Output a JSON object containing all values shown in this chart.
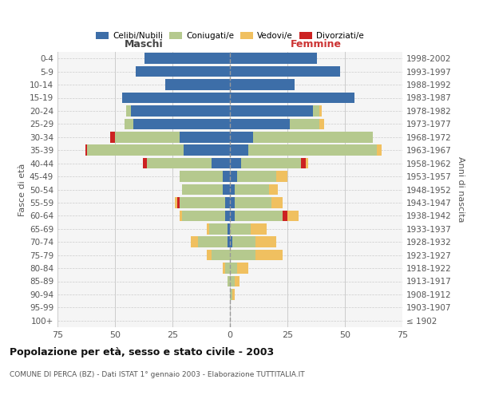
{
  "age_groups": [
    "100+",
    "95-99",
    "90-94",
    "85-89",
    "80-84",
    "75-79",
    "70-74",
    "65-69",
    "60-64",
    "55-59",
    "50-54",
    "45-49",
    "40-44",
    "35-39",
    "30-34",
    "25-29",
    "20-24",
    "15-19",
    "10-14",
    "5-9",
    "0-4"
  ],
  "birth_years": [
    "≤ 1902",
    "1903-1907",
    "1908-1912",
    "1913-1917",
    "1918-1922",
    "1923-1927",
    "1928-1932",
    "1933-1937",
    "1938-1942",
    "1943-1947",
    "1948-1952",
    "1953-1957",
    "1958-1962",
    "1963-1967",
    "1968-1972",
    "1973-1977",
    "1978-1982",
    "1983-1987",
    "1988-1992",
    "1993-1997",
    "1998-2002"
  ],
  "maschi": {
    "celibi": [
      0,
      0,
      0,
      0,
      0,
      0,
      1,
      1,
      2,
      2,
      3,
      3,
      8,
      20,
      22,
      42,
      43,
      47,
      28,
      41,
      37
    ],
    "coniugati": [
      0,
      0,
      0,
      1,
      2,
      8,
      13,
      8,
      19,
      20,
      18,
      19,
      28,
      42,
      28,
      4,
      2,
      0,
      0,
      0,
      0
    ],
    "vedovi": [
      0,
      0,
      0,
      0,
      1,
      2,
      3,
      1,
      1,
      1,
      0,
      0,
      0,
      0,
      0,
      0,
      0,
      0,
      0,
      0,
      0
    ],
    "divorziati": [
      0,
      0,
      0,
      0,
      0,
      0,
      0,
      0,
      0,
      1,
      0,
      0,
      2,
      1,
      2,
      0,
      0,
      0,
      0,
      0,
      0
    ]
  },
  "femmine": {
    "nubili": [
      0,
      0,
      0,
      0,
      0,
      0,
      1,
      0,
      2,
      2,
      2,
      3,
      5,
      8,
      10,
      26,
      36,
      54,
      28,
      48,
      38
    ],
    "coniugate": [
      0,
      0,
      1,
      2,
      3,
      11,
      10,
      9,
      21,
      16,
      15,
      17,
      26,
      56,
      52,
      13,
      3,
      0,
      0,
      0,
      0
    ],
    "vedove": [
      0,
      0,
      1,
      2,
      5,
      12,
      9,
      7,
      5,
      5,
      4,
      5,
      1,
      2,
      0,
      2,
      1,
      0,
      0,
      0,
      0
    ],
    "divorziate": [
      0,
      0,
      0,
      0,
      0,
      0,
      0,
      0,
      2,
      0,
      0,
      0,
      2,
      0,
      0,
      0,
      0,
      0,
      0,
      0,
      0
    ]
  },
  "colors": {
    "celibi_nubili": "#3d6ea8",
    "coniugati_e": "#b5c98e",
    "vedovi_e": "#f0c060",
    "divorziati_e": "#cc2222"
  },
  "title": "Popolazione per età, sesso e stato civile - 2003",
  "subtitle": "COMUNE DI PERCA (BZ) - Dati ISTAT 1° gennaio 2003 - Elaborazione TUTTITALIA.IT",
  "xlabel_left": "Maschi",
  "xlabel_right": "Femmine",
  "ylabel_left": "Fasce di età",
  "ylabel_right": "Anni di nascita",
  "xlim": 75,
  "bg_color": "#f5f5f5",
  "grid_color": "#cccccc"
}
